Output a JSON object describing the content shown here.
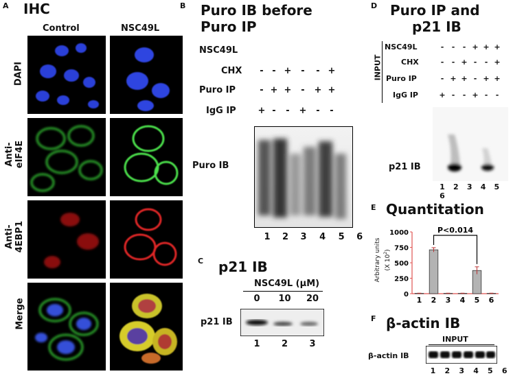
{
  "panelA": {
    "letter": "A",
    "title": "IHC",
    "columns": [
      "Control",
      "NSC49L"
    ],
    "rows": [
      "DAPI",
      "Anti-\neIF4E",
      "Anti-\n4EBP1",
      "Merge"
    ],
    "row_line1": [
      "DAPI",
      "Anti-",
      "Anti-",
      "Merge"
    ],
    "row_line2": [
      "",
      "eIF4E",
      "4EBP1",
      ""
    ]
  },
  "panelB": {
    "letter": "B",
    "title_line1": "Puro IB before",
    "title_line2": "Puro IP",
    "label_nsc": "NSC49L",
    "label_chx": "CHX",
    "label_puro": "Puro IP",
    "label_igg": "IgG IP",
    "chx_signs": [
      "-",
      "-",
      "+",
      "-",
      "-",
      "+"
    ],
    "puro_signs": [
      "-",
      "+",
      "+",
      "-",
      "+",
      "+"
    ],
    "igg_signs": [
      "+",
      "-",
      "-",
      "+",
      "-",
      "-"
    ],
    "blot_label": "Puro IB",
    "lanes": [
      "1",
      "2",
      "3",
      "4",
      "5",
      "6"
    ]
  },
  "panelC": {
    "letter": "C",
    "title": "p21 IB",
    "conc_label": "NSC49L (μM)",
    "concs": [
      "0",
      "10",
      "20"
    ],
    "blot_label": "p21 IB",
    "lanes": [
      "1",
      "2",
      "3"
    ]
  },
  "panelD": {
    "letter": "D",
    "title_line1": "Puro IP and",
    "title_line2": "p21 IB",
    "input_label": "INPUT",
    "label_nsc": "NSC49L",
    "label_chx": "CHX",
    "label_puro": "Puro IP",
    "label_igg": "IgG IP",
    "nsc_signs": [
      "-",
      "-",
      "-",
      "+",
      "+",
      "+"
    ],
    "chx_signs": [
      "-",
      "-",
      "+",
      "-",
      "-",
      "+"
    ],
    "puro_signs": [
      "-",
      "+",
      "+",
      "-",
      "+",
      "+"
    ],
    "igg_signs": [
      "+",
      "-",
      "-",
      "+",
      "-",
      "-"
    ],
    "blot_label": "p21 IB",
    "lanes": [
      "1",
      "2",
      "3",
      "4",
      "5",
      "6"
    ]
  },
  "panelE": {
    "letter": "E",
    "title": "Quantitation",
    "ylabel_line1": "Arbitrary units",
    "ylabel_line2": "(X 10",
    "ylabel_sup": "2",
    "ylabel_close": ")",
    "annotation": "P<0.014",
    "chart_data": {
      "type": "bar",
      "categories": [
        "1",
        "2",
        "3",
        "4",
        "5",
        "6"
      ],
      "values": [
        5,
        710,
        5,
        5,
        375,
        5
      ],
      "errors": [
        3,
        35,
        3,
        3,
        60,
        3
      ],
      "yticks": [
        "0",
        "250",
        "500",
        "750",
        "1000"
      ],
      "ylim": [
        0,
        1000
      ],
      "bar_color": "#b3b3b3",
      "axis_color": "#e0524f"
    }
  },
  "panelF": {
    "letter": "F",
    "title": "β-actin IB",
    "input_label": "INPUT",
    "blot_label": "β-actin IB",
    "lanes": [
      "1",
      "2",
      "3",
      "4",
      "5",
      "6"
    ]
  }
}
